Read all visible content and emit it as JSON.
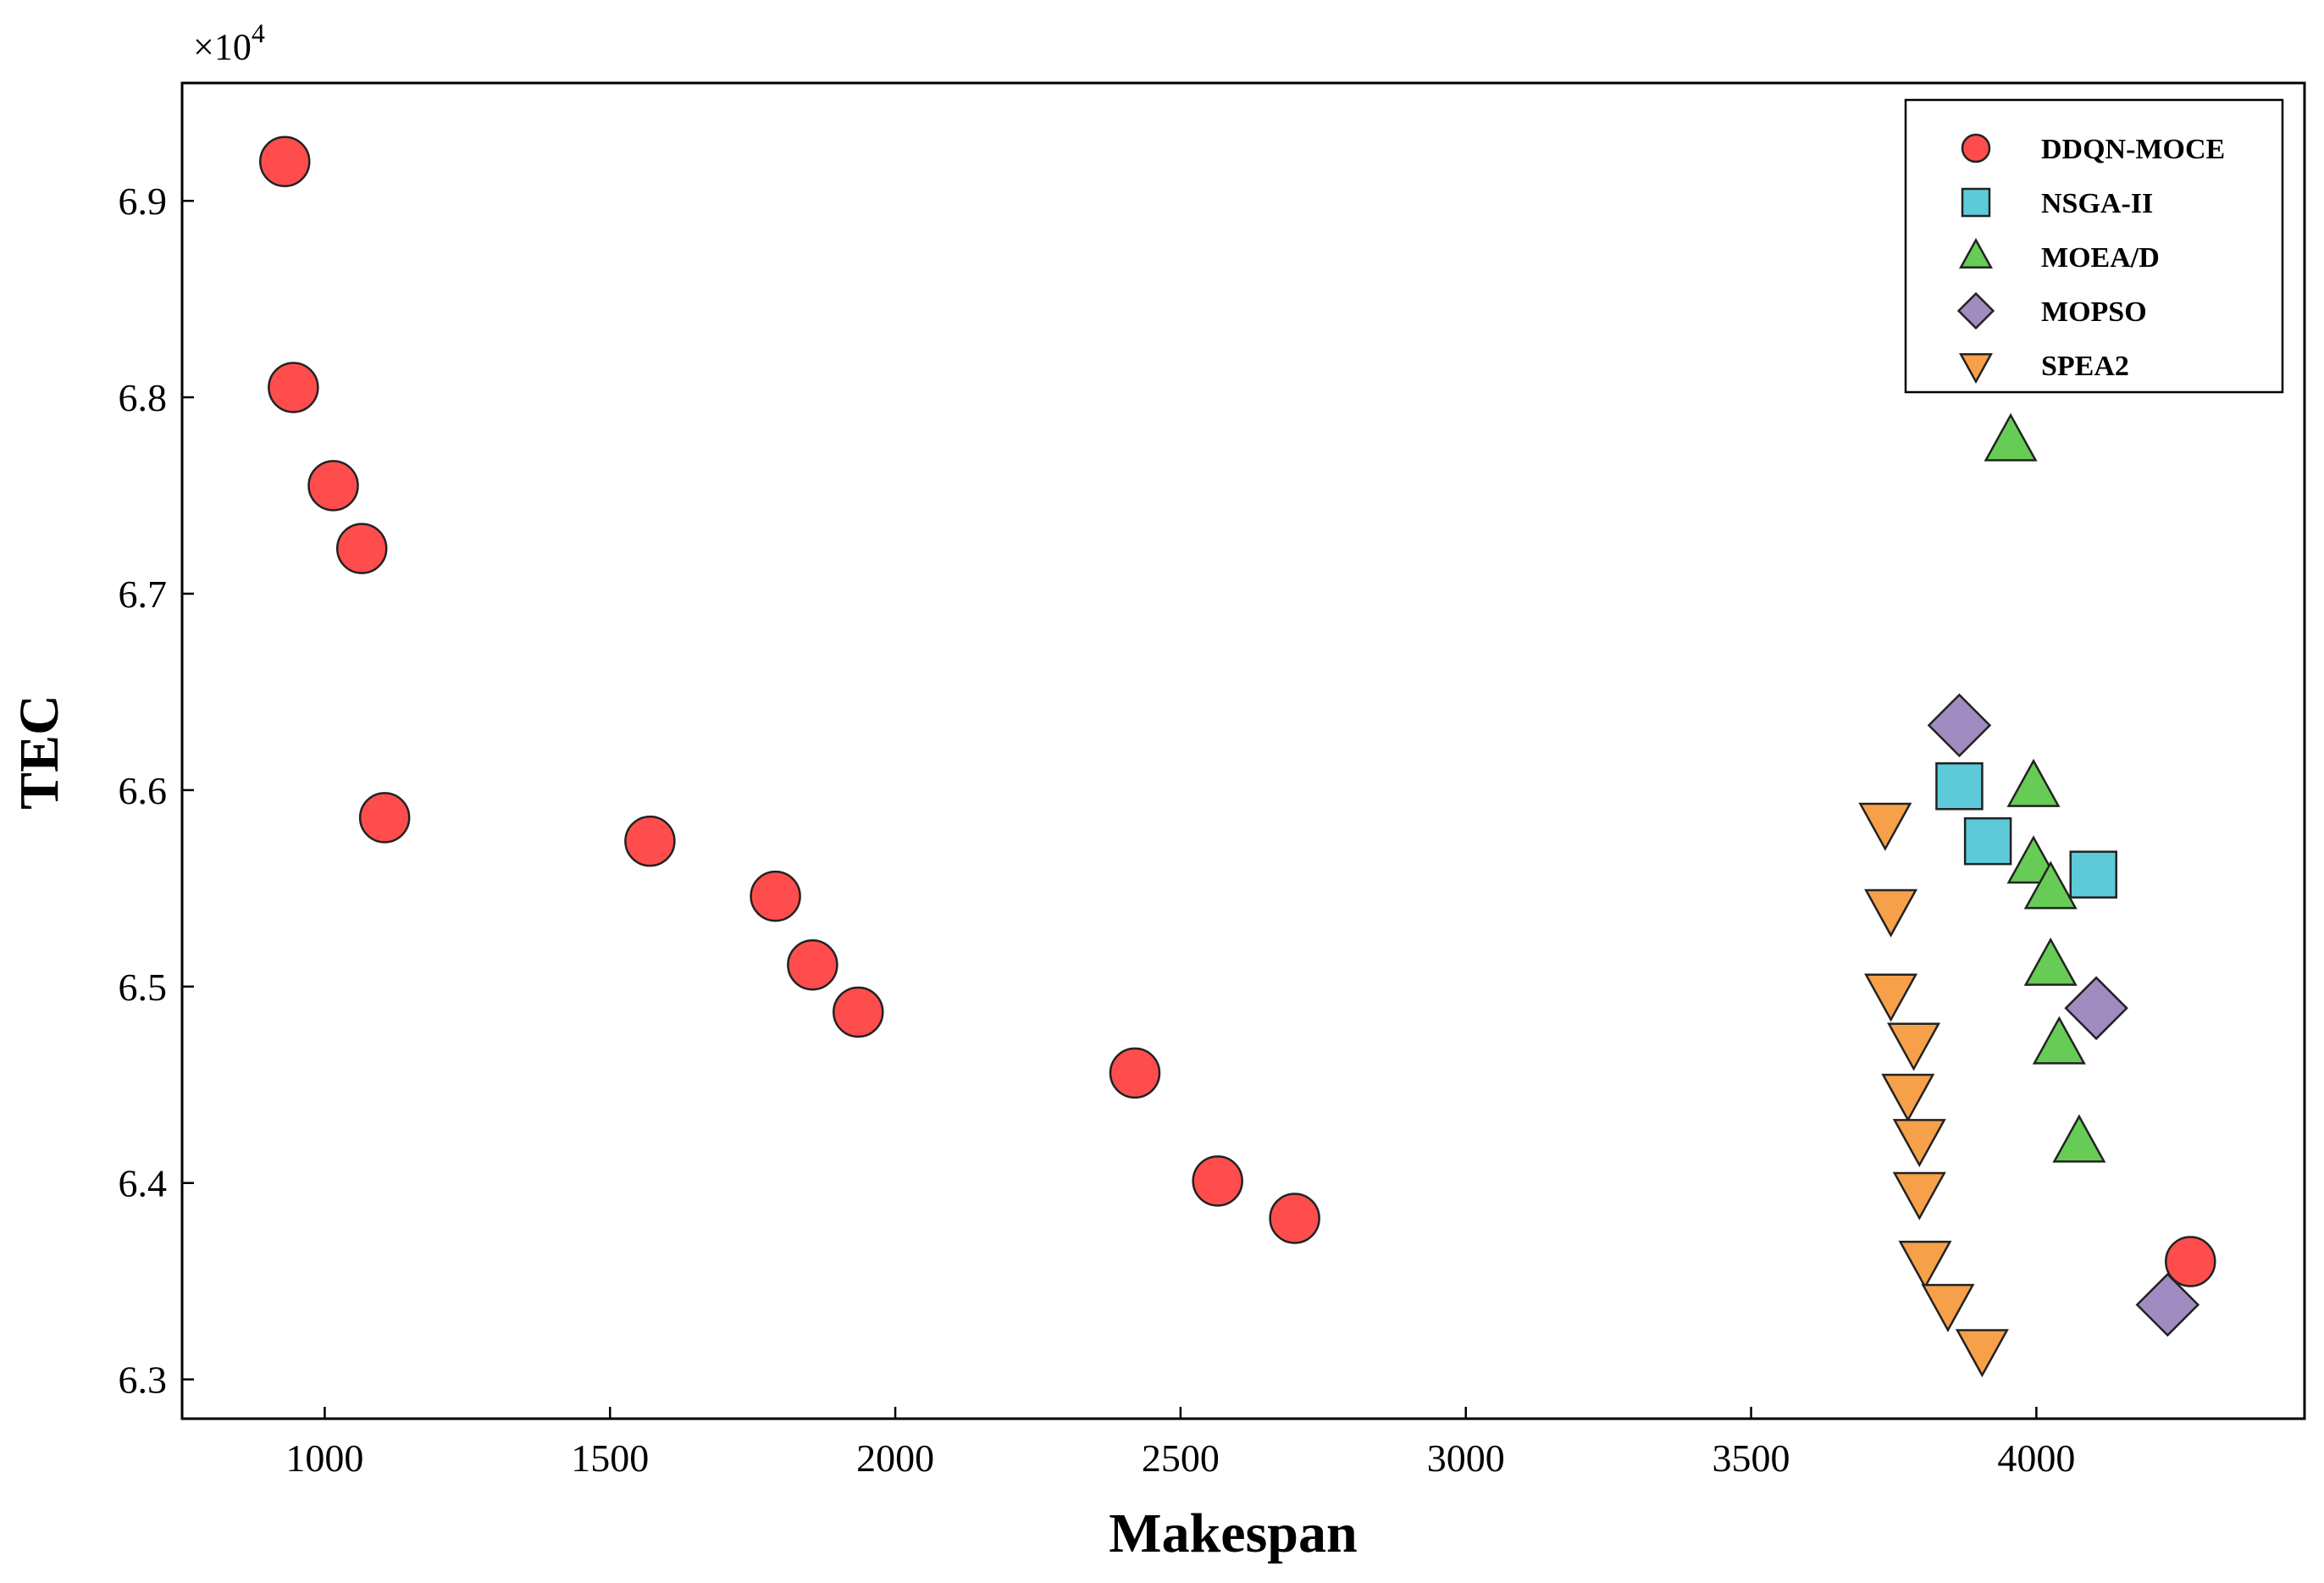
{
  "chart_data": {
    "type": "scatter",
    "xlabel": "Makespan",
    "ylabel": "TEC",
    "y_multiplier_label": "×10",
    "y_multiplier_exponent": "4",
    "xlim": [
      750,
      4470
    ],
    "ylim": [
      62.8,
      69.6
    ],
    "y_scale_factor": 1000,
    "x_ticks": [
      1000,
      1500,
      2000,
      2500,
      3000,
      3500,
      4000
    ],
    "x_tick_labels": [
      "1000",
      "1500",
      "2000",
      "2500",
      "3000",
      "3500",
      "4000"
    ],
    "y_ticks": [
      63.0,
      64.0,
      65.0,
      66.0,
      67.0,
      68.0,
      69.0
    ],
    "y_tick_labels": [
      "6.3",
      "6.4",
      "6.5",
      "6.6",
      "6.7",
      "6.8",
      "6.9"
    ],
    "grid": false,
    "legend_position": "top-right",
    "series": [
      {
        "name": "DDQN-MOCE",
        "marker": "circle",
        "color": "#ff4d4d",
        "points": [
          [
            930,
            69200
          ],
          [
            945,
            68050
          ],
          [
            1015,
            67550
          ],
          [
            1065,
            67230
          ],
          [
            1105,
            65860
          ],
          [
            1570,
            65740
          ],
          [
            1790,
            65460
          ],
          [
            1855,
            65110
          ],
          [
            1935,
            64870
          ],
          [
            2420,
            64560
          ],
          [
            2565,
            64010
          ],
          [
            2700,
            63820
          ],
          [
            4270,
            63600
          ]
        ]
      },
      {
        "name": "NSGA-II",
        "marker": "square",
        "color": "#5ccad8",
        "points": [
          [
            3865,
            66020
          ],
          [
            3915,
            65740
          ],
          [
            4100,
            65570
          ]
        ]
      },
      {
        "name": "MOEA/D",
        "marker": "triangle-up",
        "color": "#66cc55",
        "points": [
          [
            3955,
            67770
          ],
          [
            3995,
            66010
          ],
          [
            3995,
            65620
          ],
          [
            4025,
            65490
          ],
          [
            4025,
            65100
          ],
          [
            4040,
            64700
          ],
          [
            4075,
            64200
          ]
        ]
      },
      {
        "name": "MOPSO",
        "marker": "diamond",
        "color": "#a08cc0",
        "points": [
          [
            3865,
            66330
          ],
          [
            4105,
            64890
          ],
          [
            4230,
            63380
          ]
        ]
      },
      {
        "name": "SPEA2",
        "marker": "triangle-down",
        "color": "#f7a04a",
        "points": [
          [
            3735,
            65840
          ],
          [
            3745,
            65400
          ],
          [
            3745,
            64970
          ],
          [
            3785,
            64720
          ],
          [
            3775,
            64460
          ],
          [
            3795,
            64230
          ],
          [
            3795,
            63960
          ],
          [
            3805,
            63610
          ],
          [
            3845,
            63390
          ],
          [
            3905,
            63160
          ]
        ]
      }
    ]
  }
}
